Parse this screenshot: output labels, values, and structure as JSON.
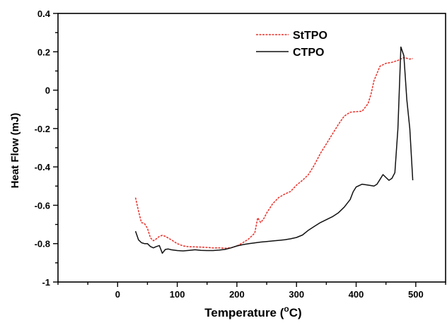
{
  "chart_data": {
    "type": "line",
    "title": "",
    "xlabel": "Temperature (",
    "xlabel_sup": "o",
    "xlabel_unit": "C)",
    "ylabel": "Heat Flow (mJ)",
    "xlim": [
      -100,
      550
    ],
    "ylim": [
      -1,
      0.4
    ],
    "xticks": [
      0,
      100,
      200,
      300,
      400,
      500
    ],
    "xtick_labels": [
      "0",
      "100",
      "200",
      "300",
      "400",
      "500"
    ],
    "yticks": [
      -1,
      -0.8,
      -0.6,
      -0.4,
      -0.2,
      0,
      0.2,
      0.4
    ],
    "ytick_labels": [
      "-1",
      "-0.8",
      "-0.6",
      "-0.4",
      "-0.2",
      "0",
      "0.2",
      "0.4"
    ],
    "grid": false,
    "legend_position": "top-center",
    "series": [
      {
        "name": "StTPO",
        "color": "#e8302a",
        "dash": "dashed",
        "points": [
          [
            30,
            -0.56
          ],
          [
            35,
            -0.63
          ],
          [
            40,
            -0.69
          ],
          [
            45,
            -0.695
          ],
          [
            50,
            -0.72
          ],
          [
            55,
            -0.77
          ],
          [
            60,
            -0.785
          ],
          [
            65,
            -0.775
          ],
          [
            70,
            -0.762
          ],
          [
            75,
            -0.757
          ],
          [
            80,
            -0.762
          ],
          [
            90,
            -0.78
          ],
          [
            100,
            -0.8
          ],
          [
            110,
            -0.812
          ],
          [
            120,
            -0.816
          ],
          [
            130,
            -0.817
          ],
          [
            140,
            -0.818
          ],
          [
            150,
            -0.82
          ],
          [
            160,
            -0.822
          ],
          [
            170,
            -0.822
          ],
          [
            180,
            -0.824
          ],
          [
            190,
            -0.822
          ],
          [
            200,
            -0.812
          ],
          [
            210,
            -0.795
          ],
          [
            220,
            -0.775
          ],
          [
            230,
            -0.745
          ],
          [
            235,
            -0.665
          ],
          [
            240,
            -0.69
          ],
          [
            245,
            -0.67
          ],
          [
            250,
            -0.64
          ],
          [
            260,
            -0.592
          ],
          [
            270,
            -0.56
          ],
          [
            280,
            -0.542
          ],
          [
            290,
            -0.528
          ],
          [
            300,
            -0.495
          ],
          [
            310,
            -0.47
          ],
          [
            320,
            -0.44
          ],
          [
            330,
            -0.39
          ],
          [
            340,
            -0.33
          ],
          [
            350,
            -0.28
          ],
          [
            360,
            -0.23
          ],
          [
            370,
            -0.18
          ],
          [
            380,
            -0.135
          ],
          [
            390,
            -0.115
          ],
          [
            400,
            -0.112
          ],
          [
            410,
            -0.11
          ],
          [
            420,
            -0.07
          ],
          [
            425,
            -0.02
          ],
          [
            430,
            0.05
          ],
          [
            440,
            0.125
          ],
          [
            450,
            0.14
          ],
          [
            460,
            0.145
          ],
          [
            470,
            0.155
          ],
          [
            480,
            0.17
          ],
          [
            490,
            0.162
          ],
          [
            495,
            0.165
          ]
        ]
      },
      {
        "name": "CTPO",
        "color": "#111111",
        "dash": "solid",
        "points": [
          [
            30,
            -0.735
          ],
          [
            35,
            -0.78
          ],
          [
            40,
            -0.795
          ],
          [
            45,
            -0.8
          ],
          [
            50,
            -0.8
          ],
          [
            55,
            -0.815
          ],
          [
            60,
            -0.822
          ],
          [
            65,
            -0.815
          ],
          [
            70,
            -0.81
          ],
          [
            75,
            -0.85
          ],
          [
            80,
            -0.83
          ],
          [
            85,
            -0.828
          ],
          [
            90,
            -0.832
          ],
          [
            100,
            -0.836
          ],
          [
            110,
            -0.838
          ],
          [
            120,
            -0.835
          ],
          [
            130,
            -0.832
          ],
          [
            140,
            -0.835
          ],
          [
            150,
            -0.836
          ],
          [
            160,
            -0.836
          ],
          [
            170,
            -0.834
          ],
          [
            180,
            -0.83
          ],
          [
            190,
            -0.822
          ],
          [
            200,
            -0.812
          ],
          [
            210,
            -0.805
          ],
          [
            220,
            -0.8
          ],
          [
            230,
            -0.796
          ],
          [
            240,
            -0.792
          ],
          [
            250,
            -0.789
          ],
          [
            260,
            -0.786
          ],
          [
            270,
            -0.783
          ],
          [
            280,
            -0.78
          ],
          [
            290,
            -0.775
          ],
          [
            300,
            -0.768
          ],
          [
            310,
            -0.755
          ],
          [
            320,
            -0.73
          ],
          [
            330,
            -0.71
          ],
          [
            340,
            -0.69
          ],
          [
            350,
            -0.675
          ],
          [
            360,
            -0.66
          ],
          [
            370,
            -0.64
          ],
          [
            380,
            -0.61
          ],
          [
            390,
            -0.57
          ],
          [
            395,
            -0.53
          ],
          [
            400,
            -0.505
          ],
          [
            410,
            -0.49
          ],
          [
            420,
            -0.495
          ],
          [
            430,
            -0.5
          ],
          [
            435,
            -0.49
          ],
          [
            440,
            -0.465
          ],
          [
            445,
            -0.44
          ],
          [
            450,
            -0.455
          ],
          [
            455,
            -0.47
          ],
          [
            460,
            -0.46
          ],
          [
            465,
            -0.43
          ],
          [
            470,
            -0.2
          ],
          [
            475,
            0.225
          ],
          [
            480,
            0.18
          ],
          [
            485,
            -0.05
          ],
          [
            490,
            -0.2
          ],
          [
            495,
            -0.47
          ]
        ]
      }
    ]
  }
}
